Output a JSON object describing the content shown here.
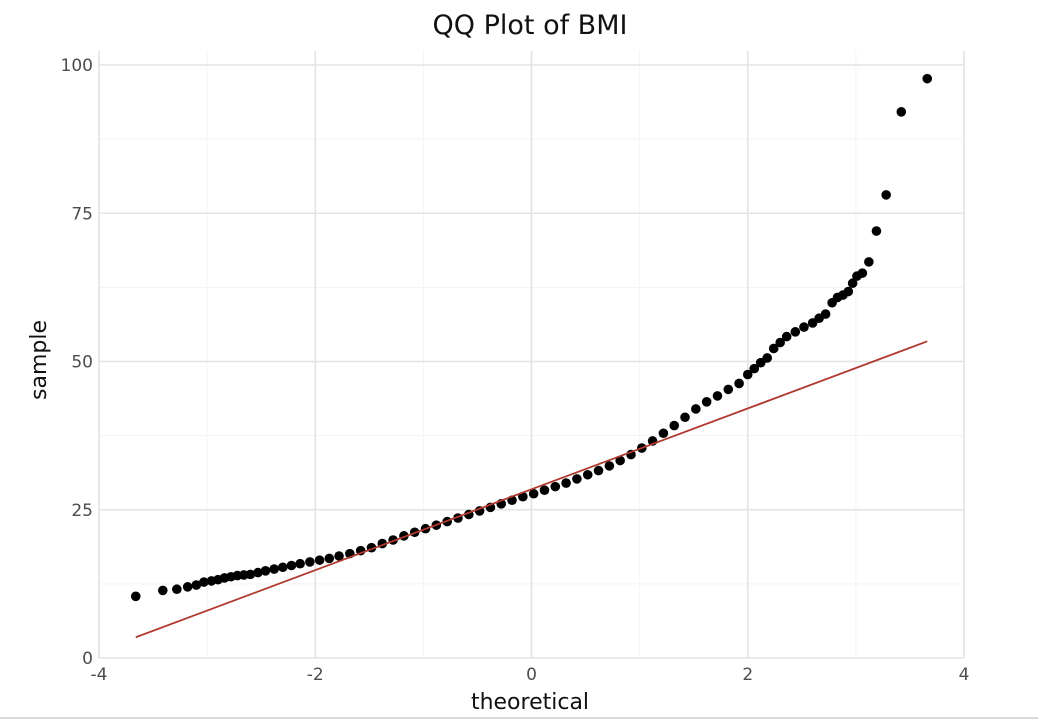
{
  "chart_data": {
    "type": "scatter",
    "title": "QQ Plot of BMI",
    "xlabel": "theoretical",
    "ylabel": "sample",
    "xlim": [
      -4,
      4
    ],
    "ylim": [
      0,
      100
    ],
    "xticks": [
      -4,
      -2,
      0,
      2,
      4
    ],
    "yticks": [
      0,
      25,
      50,
      75,
      100
    ],
    "xtick_labels": [
      "-4",
      "-2",
      "0",
      "2",
      "4"
    ],
    "ytick_labels": [
      "0",
      "25",
      "50",
      "75",
      "100"
    ],
    "grid": true,
    "colors": {
      "points": "#000000",
      "reference_line": "#b03a2e"
    },
    "points": [
      [
        -3.66,
        10.4
      ],
      [
        -3.41,
        11.4
      ],
      [
        -3.28,
        11.6
      ],
      [
        -3.18,
        12.0
      ],
      [
        -3.1,
        12.3
      ],
      [
        -3.03,
        12.8
      ],
      [
        -2.96,
        13.0
      ],
      [
        -2.9,
        13.2
      ],
      [
        -2.84,
        13.5
      ],
      [
        -2.78,
        13.7
      ],
      [
        -2.72,
        13.9
      ],
      [
        -2.66,
        14.0
      ],
      [
        -2.6,
        14.1
      ],
      [
        -2.53,
        14.4
      ],
      [
        -2.46,
        14.7
      ],
      [
        -2.38,
        15.0
      ],
      [
        -2.3,
        15.3
      ],
      [
        -2.22,
        15.6
      ],
      [
        -2.14,
        15.9
      ],
      [
        -2.05,
        16.2
      ],
      [
        -1.96,
        16.5
      ],
      [
        -1.87,
        16.8
      ],
      [
        -1.78,
        17.2
      ],
      [
        -1.68,
        17.6
      ],
      [
        -1.58,
        18.1
      ],
      [
        -1.48,
        18.6
      ],
      [
        -1.38,
        19.3
      ],
      [
        -1.28,
        19.9
      ],
      [
        -1.18,
        20.6
      ],
      [
        -1.08,
        21.2
      ],
      [
        -0.98,
        21.8
      ],
      [
        -0.88,
        22.4
      ],
      [
        -0.78,
        23.0
      ],
      [
        -0.68,
        23.6
      ],
      [
        -0.58,
        24.2
      ],
      [
        -0.48,
        24.8
      ],
      [
        -0.38,
        25.4
      ],
      [
        -0.28,
        26.0
      ],
      [
        -0.18,
        26.6
      ],
      [
        -0.08,
        27.2
      ],
      [
        0.02,
        27.7
      ],
      [
        0.12,
        28.3
      ],
      [
        0.22,
        28.9
      ],
      [
        0.32,
        29.5
      ],
      [
        0.42,
        30.2
      ],
      [
        0.52,
        30.9
      ],
      [
        0.62,
        31.6
      ],
      [
        0.72,
        32.4
      ],
      [
        0.82,
        33.3
      ],
      [
        0.92,
        34.3
      ],
      [
        1.02,
        35.4
      ],
      [
        1.12,
        36.6
      ],
      [
        1.22,
        37.9
      ],
      [
        1.32,
        39.2
      ],
      [
        1.42,
        40.6
      ],
      [
        1.52,
        42.0
      ],
      [
        1.62,
        43.2
      ],
      [
        1.72,
        44.2
      ],
      [
        1.82,
        45.3
      ],
      [
        1.92,
        46.3
      ],
      [
        2.0,
        47.8
      ],
      [
        2.06,
        48.8
      ],
      [
        2.12,
        49.8
      ],
      [
        2.18,
        50.6
      ],
      [
        2.24,
        52.2
      ],
      [
        2.3,
        53.2
      ],
      [
        2.36,
        54.2
      ],
      [
        2.44,
        55.0
      ],
      [
        2.52,
        55.8
      ],
      [
        2.6,
        56.5
      ],
      [
        2.66,
        57.3
      ],
      [
        2.72,
        58.0
      ],
      [
        2.78,
        59.9
      ],
      [
        2.83,
        60.8
      ],
      [
        2.88,
        61.2
      ],
      [
        2.93,
        61.8
      ],
      [
        2.97,
        63.2
      ],
      [
        3.01,
        64.4
      ],
      [
        3.06,
        64.9
      ],
      [
        3.12,
        66.8
      ],
      [
        3.19,
        72.0
      ],
      [
        3.28,
        78.1
      ],
      [
        3.42,
        92.1
      ],
      [
        3.66,
        97.7
      ]
    ],
    "reference_line": [
      [
        -3.66,
        3.5
      ],
      [
        3.66,
        53.4
      ]
    ]
  }
}
